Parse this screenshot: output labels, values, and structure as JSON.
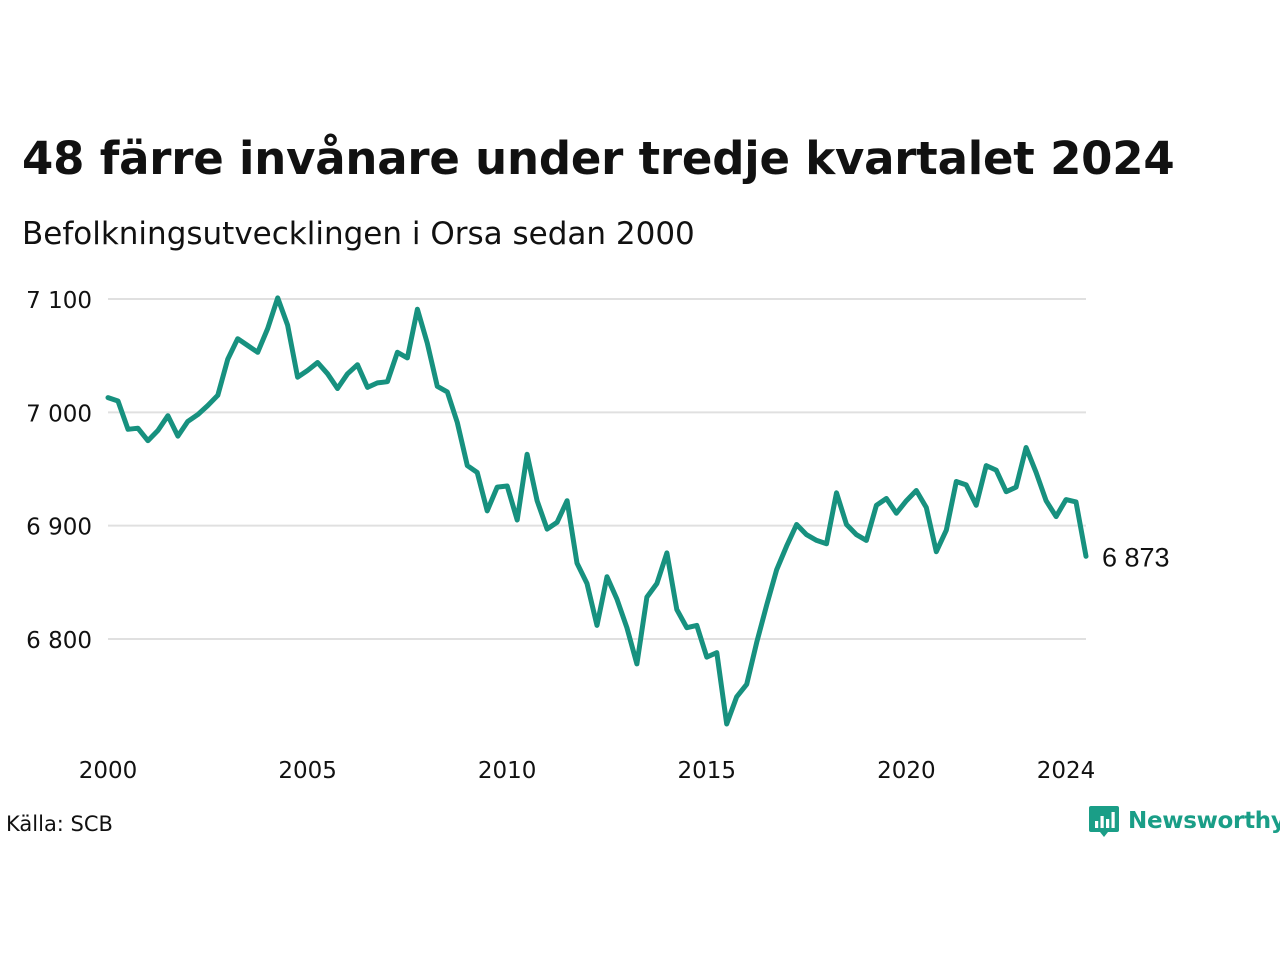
{
  "title": "48 färre invånare under tredje kvartalet 2024",
  "subtitle": "Befolkningsutvecklingen i Orsa sedan 2000",
  "source": "Källa: SCB",
  "brand": {
    "name": "Newsworthy",
    "icon": "newsworthy-logo-icon",
    "color": "#1a9e87"
  },
  "colors": {
    "line": "#17917f",
    "grid": "#e0e0e0",
    "text": "#111111"
  },
  "chart_data": {
    "type": "line",
    "title": "48 färre invånare under tredje kvartalet 2024",
    "subtitle": "Befolkningsutvecklingen i Orsa sedan 2000",
    "xlabel": "",
    "ylabel": "",
    "xlim": [
      2000,
      2024.5
    ],
    "ylim": [
      6720,
      7110
    ],
    "x_ticks": [
      2000,
      2005,
      2010,
      2015,
      2020,
      2024
    ],
    "x_tick_labels": [
      "2000",
      "2005",
      "2010",
      "2015",
      "2020",
      "2024"
    ],
    "y_ticks": [
      6800,
      6900,
      7000,
      7100
    ],
    "y_tick_labels": [
      "6 800",
      "6 900",
      "7 000",
      "7 100"
    ],
    "grid": "horizontal",
    "legend": "none",
    "end_label": "6 873",
    "series": [
      {
        "x": [
          2000.0,
          2000.25,
          2000.5,
          2000.75,
          2001.0,
          2001.25,
          2001.5,
          2001.75,
          2002.0,
          2002.25,
          2002.5,
          2002.75,
          2003.0,
          2003.25,
          2003.5,
          2003.75,
          2004.0,
          2004.25,
          2004.5,
          2004.75,
          2005.0,
          2005.25,
          2005.5,
          2005.75,
          2006.0,
          2006.25,
          2006.5,
          2006.75,
          2007.0,
          2007.25,
          2007.5,
          2007.75,
          2008.0,
          2008.25,
          2008.5,
          2008.75,
          2009.0,
          2009.25,
          2009.5,
          2009.75,
          2010.0,
          2010.25,
          2010.5,
          2010.75,
          2011.0,
          2011.25,
          2011.5,
          2011.75,
          2012.0,
          2012.25,
          2012.5,
          2012.75,
          2013.0,
          2013.25,
          2013.5,
          2013.75,
          2014.0,
          2014.25,
          2014.5,
          2014.75,
          2015.0,
          2015.25,
          2015.5,
          2015.75,
          2016.0,
          2016.25,
          2016.5,
          2016.75,
          2017.0,
          2017.25,
          2017.5,
          2017.75,
          2018.0,
          2018.25,
          2018.5,
          2018.75,
          2019.0,
          2019.25,
          2019.5,
          2019.75,
          2020.0,
          2020.25,
          2020.5,
          2020.75,
          2021.0,
          2021.25,
          2021.5,
          2021.75,
          2022.0,
          2022.25,
          2022.5,
          2022.75,
          2023.0,
          2023.25,
          2023.5,
          2023.75,
          2024.0,
          2024.25,
          2024.5
        ],
        "values": [
          7013,
          7010,
          6985,
          6986,
          6975,
          6984,
          6997,
          6979,
          6992,
          6998,
          7006,
          7015,
          7047,
          7065,
          7059,
          7053,
          7074,
          7101,
          7077,
          7031,
          7037,
          7044,
          7034,
          7021,
          7034,
          7042,
          7022,
          7026,
          7027,
          7053,
          7048,
          7091,
          7061,
          7023,
          7018,
          6991,
          6953,
          6947,
          6913,
          6934,
          6935,
          6905,
          6963,
          6922,
          6897,
          6903,
          6922,
          6867,
          6849,
          6812,
          6855,
          6835,
          6810,
          6778,
          6837,
          6849,
          6876,
          6826,
          6810,
          6812,
          6784,
          6788,
          6725,
          6749,
          6760,
          6797,
          6830,
          6861,
          6882,
          6901,
          6892,
          6887,
          6884,
          6929,
          6901,
          6892,
          6887,
          6918,
          6924,
          6911,
          6922,
          6931,
          6916,
          6877,
          6896,
          6939,
          6936,
          6918,
          6953,
          6949,
          6930,
          6934,
          6969,
          6947,
          6922,
          6908,
          6923,
          6921,
          6873
        ]
      }
    ]
  }
}
